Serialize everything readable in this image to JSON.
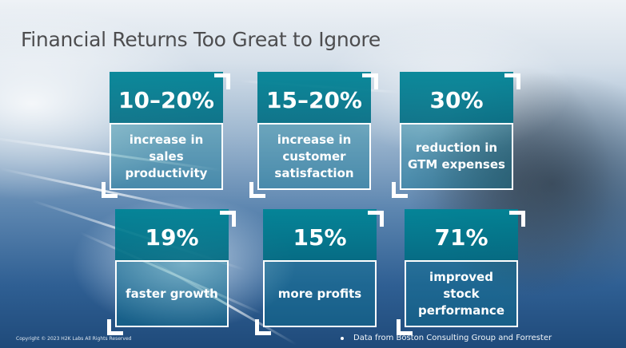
{
  "title": "Financial Returns Too Great to Ignore",
  "colors": {
    "teal_header": "#0a8496",
    "title_text": "#4d4d4f",
    "border": "#ffffff"
  },
  "stats": [
    {
      "value": "10–20%",
      "description": "increase in sales productivity"
    },
    {
      "value": "15–20%",
      "description": "increase in customer satisfaction"
    },
    {
      "value": "30%",
      "description": "reduction in GTM expenses"
    },
    {
      "value": "19%",
      "description": "faster growth"
    },
    {
      "value": "15%",
      "description": "more profits"
    },
    {
      "value": "71%",
      "description": "improved stock performance"
    }
  ],
  "footer": {
    "copyright": "Copyright © 2023 H2K Labs All Rights Reserved",
    "source": "Data from Boston Consulting Group and Forrester"
  }
}
